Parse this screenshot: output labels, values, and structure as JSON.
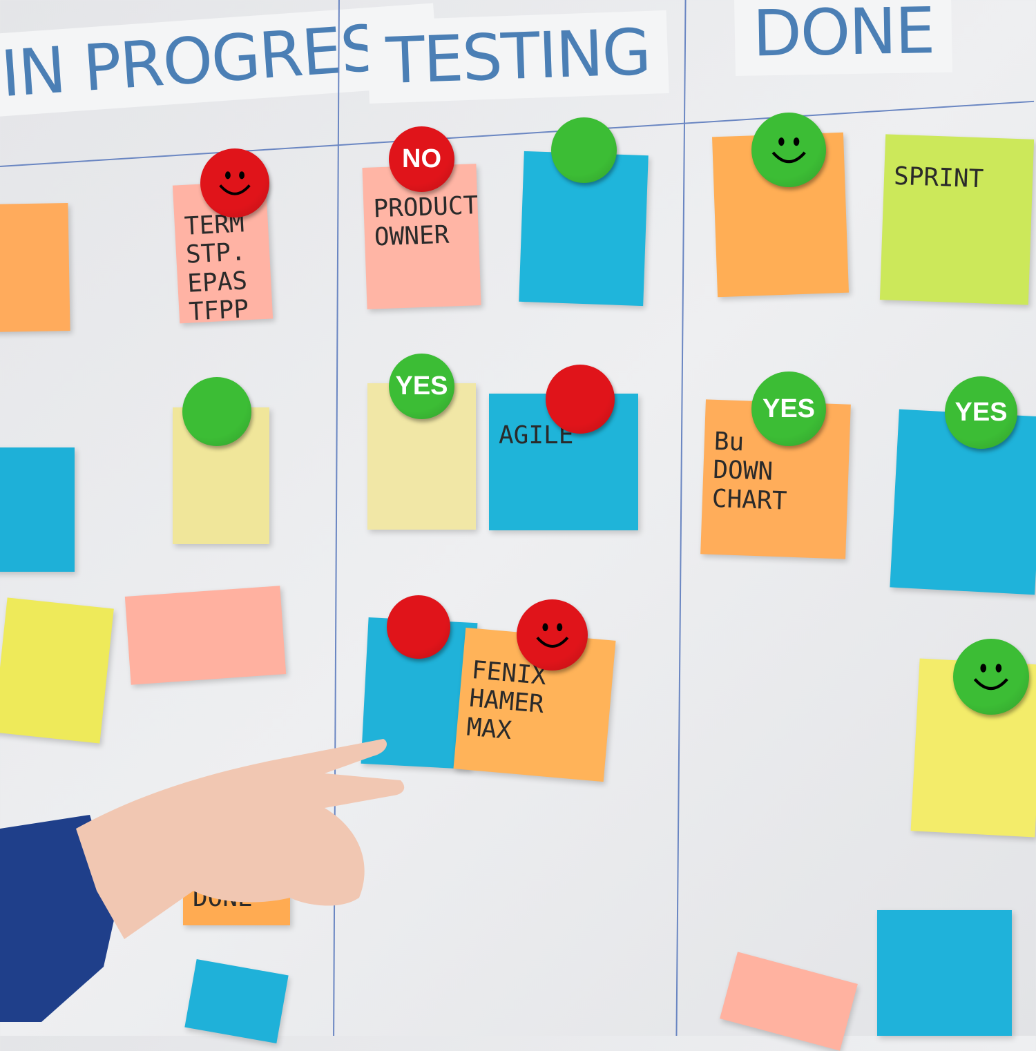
{
  "columns": [
    {
      "title": "IN PROGRESS"
    },
    {
      "title": "TESTING"
    },
    {
      "title": "DONE"
    }
  ],
  "notes": [
    {
      "text": "",
      "color": "#ffab5c"
    },
    {
      "text": "TERM STP.\nEPAS\nTFPP",
      "color": "#ffb3a4"
    },
    {
      "text": "PRODUCT\nOWNER",
      "color": "#ffb5a5"
    },
    {
      "text": "",
      "color": "#1fb5db"
    },
    {
      "text": "",
      "color": "#ffae55"
    },
    {
      "text": "SPRINT",
      "color": "#cce85a"
    },
    {
      "text": "",
      "color": "#1eb0d8"
    },
    {
      "text": "",
      "color": "#f0e69a"
    },
    {
      "text": "",
      "color": "#f1e7a6"
    },
    {
      "text": "AGILE",
      "color": "#1fb4d9"
    },
    {
      "text": "Bu\nDOWN\nCHART",
      "color": "#ffad5a"
    },
    {
      "text": "",
      "color": "#1fb3da"
    },
    {
      "text": "",
      "color": "#eeea5a"
    },
    {
      "text": "",
      "color": "#ffb1a0"
    },
    {
      "text": "",
      "color": "#20b2d9"
    },
    {
      "text": "FENIX\nHAMER\nMAX",
      "color": "#ffb359"
    },
    {
      "text": "",
      "color": "#f3ec6a"
    },
    {
      "text": "DONE",
      "color": "#ffab52"
    },
    {
      "text": "",
      "color": "#1fb1d9"
    },
    {
      "text": "",
      "color": "#ffb2a0"
    },
    {
      "text": "",
      "color": "#1fb2da"
    }
  ],
  "magnets": [
    {
      "label": "",
      "color": "#e0141a",
      "icon": "smiley"
    },
    {
      "label": "NO",
      "color": "#e0141a",
      "icon": ""
    },
    {
      "label": "",
      "color": "#3cbd35",
      "icon": ""
    },
    {
      "label": "",
      "color": "#3cbd35",
      "icon": "smiley"
    },
    {
      "label": "",
      "color": "#3cbd35",
      "icon": ""
    },
    {
      "label": "YES",
      "color": "#3cbd35",
      "icon": ""
    },
    {
      "label": "",
      "color": "#e0141a",
      "icon": ""
    },
    {
      "label": "YES",
      "color": "#3cbd35",
      "icon": ""
    },
    {
      "label": "YES",
      "color": "#3cbd35",
      "icon": ""
    },
    {
      "label": "",
      "color": "#e0141a",
      "icon": ""
    },
    {
      "label": "",
      "color": "#e0141a",
      "icon": "smiley"
    },
    {
      "label": "",
      "color": "#3cbd35",
      "icon": "smiley"
    }
  ]
}
